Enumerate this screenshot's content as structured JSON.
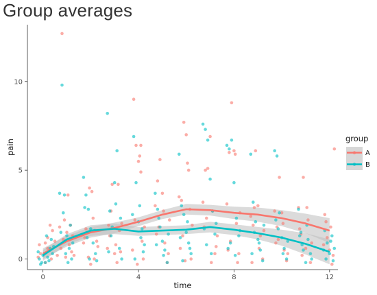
{
  "chart_data": {
    "type": "scatter",
    "title": "Group averages",
    "xlabel": "time",
    "ylabel": "pain",
    "xlim": [
      -0.65,
      12.35
    ],
    "ylim": [
      -0.6,
      13.2
    ],
    "x_ticks": [
      0,
      4,
      8,
      12
    ],
    "x_tick_labels": [
      "0",
      "4",
      "8",
      "12"
    ],
    "y_ticks": [
      0,
      5,
      10
    ],
    "y_tick_labels": [
      "0",
      "5",
      "10"
    ],
    "grid": false,
    "legend": {
      "title": "group",
      "position": "right",
      "entries": [
        "A",
        "B"
      ]
    },
    "colors": {
      "A": "#F8766D",
      "B": "#00BFC4",
      "ribbon": "#bdbdbd"
    },
    "series": [
      {
        "name": "A",
        "smooth": {
          "x": [
            0,
            1,
            2,
            3,
            4,
            5,
            6,
            7,
            8,
            9,
            10,
            11,
            12
          ],
          "y": [
            0.3,
            1.0,
            1.5,
            1.75,
            2.1,
            2.5,
            2.8,
            2.75,
            2.6,
            2.5,
            2.3,
            2.0,
            1.6
          ],
          "lower": [
            0.0,
            0.7,
            1.2,
            1.45,
            1.85,
            2.25,
            2.5,
            2.45,
            2.25,
            2.1,
            1.85,
            1.45,
            0.9
          ],
          "upper": [
            0.6,
            1.3,
            1.8,
            2.05,
            2.35,
            2.75,
            3.1,
            3.05,
            2.95,
            2.9,
            2.75,
            2.55,
            2.3
          ]
        },
        "points": [
          [
            -0.2,
            0.1
          ],
          [
            -0.1,
            0.3
          ],
          [
            0.1,
            0.9
          ],
          [
            0.2,
            1.2
          ],
          [
            0.3,
            1.9
          ],
          [
            0.4,
            1.6
          ],
          [
            0.1,
            -0.2
          ],
          [
            0.3,
            0.5
          ],
          [
            0.5,
            1.0
          ],
          [
            0.6,
            0.2
          ],
          [
            0.2,
            0.6
          ],
          [
            -0.15,
            0.8
          ],
          [
            0.35,
            0.0
          ],
          [
            0.8,
            12.7
          ],
          [
            0.7,
            1.8
          ],
          [
            0.9,
            2.2
          ],
          [
            1.0,
            1.5
          ],
          [
            1.1,
            0.8
          ],
          [
            1.2,
            0.4
          ],
          [
            0.85,
            1.1
          ],
          [
            1.15,
            1.9
          ],
          [
            0.95,
            0.1
          ],
          [
            1.05,
            3.6
          ],
          [
            1.25,
            1.3
          ],
          [
            0.75,
            0.6
          ],
          [
            1.3,
            0.2
          ],
          [
            1.7,
            0.9
          ],
          [
            1.8,
            1.7
          ],
          [
            1.9,
            0.1
          ],
          [
            2.0,
            -0.3
          ],
          [
            2.1,
            2.3
          ],
          [
            2.2,
            1.6
          ],
          [
            2.3,
            0.7
          ],
          [
            1.95,
            4.0
          ],
          [
            2.05,
            3.8
          ],
          [
            2.15,
            0.0
          ],
          [
            1.75,
            1.2
          ],
          [
            2.25,
            1.0
          ],
          [
            2.7,
            0.6
          ],
          [
            2.8,
            1.3
          ],
          [
            2.9,
            4.2
          ],
          [
            3.0,
            0.3
          ],
          [
            3.1,
            -0.2
          ],
          [
            3.2,
            1.6
          ],
          [
            3.3,
            2.0
          ],
          [
            3.05,
            0.8
          ],
          [
            2.85,
            2.7
          ],
          [
            3.15,
            4.2
          ],
          [
            3.25,
            0.4
          ],
          [
            2.75,
            1.9
          ],
          [
            3.8,
            9.0
          ],
          [
            3.9,
            6.4
          ],
          [
            4.0,
            5.5
          ],
          [
            4.05,
            5.8
          ],
          [
            4.1,
            6.4
          ],
          [
            3.85,
            2.2
          ],
          [
            4.15,
            1.0
          ],
          [
            4.2,
            0.0
          ],
          [
            3.95,
            -0.3
          ],
          [
            4.25,
            1.8
          ],
          [
            3.75,
            0.5
          ],
          [
            4.1,
            4.9
          ],
          [
            4.7,
            3.0
          ],
          [
            4.8,
            4.4
          ],
          [
            4.9,
            5.6
          ],
          [
            5.0,
            3.7
          ],
          [
            5.1,
            0.9
          ],
          [
            5.2,
            -0.2
          ],
          [
            5.3,
            2.2
          ],
          [
            4.85,
            1.8
          ],
          [
            5.05,
            2.7
          ],
          [
            5.25,
            0.3
          ],
          [
            4.75,
            1.4
          ],
          [
            5.7,
            3.5
          ],
          [
            5.8,
            3.3
          ],
          [
            5.9,
            7.7
          ],
          [
            6.0,
            7.0
          ],
          [
            6.05,
            5.4
          ],
          [
            6.1,
            5.0
          ],
          [
            6.2,
            0.0
          ],
          [
            5.85,
            1.3
          ],
          [
            6.15,
            2.8
          ],
          [
            5.75,
            0.6
          ],
          [
            6.25,
            1.9
          ],
          [
            5.95,
            -0.1
          ],
          [
            6.7,
            3.2
          ],
          [
            6.8,
            5.0
          ],
          [
            6.9,
            5.1
          ],
          [
            7.0,
            6.9
          ],
          [
            7.1,
            2.7
          ],
          [
            7.2,
            0.3
          ],
          [
            7.3,
            1.3
          ],
          [
            6.85,
            2.3
          ],
          [
            7.05,
            -0.2
          ],
          [
            7.25,
            0.7
          ],
          [
            6.75,
            1.8
          ],
          [
            7.7,
            3.1
          ],
          [
            7.8,
            6.0
          ],
          [
            7.9,
            8.8
          ],
          [
            8.0,
            6.1
          ],
          [
            8.05,
            5.9
          ],
          [
            8.1,
            2.0
          ],
          [
            8.2,
            0.3
          ],
          [
            7.85,
            1.0
          ],
          [
            8.15,
            -0.2
          ],
          [
            8.25,
            2.6
          ],
          [
            7.75,
            0.5
          ],
          [
            8.7,
            2.4
          ],
          [
            8.8,
            1.9
          ],
          [
            8.9,
            6.1
          ],
          [
            9.0,
            3.0
          ],
          [
            9.1,
            1.3
          ],
          [
            9.2,
            0.0
          ],
          [
            8.85,
            2.9
          ],
          [
            9.05,
            0.6
          ],
          [
            9.25,
            1.6
          ],
          [
            8.75,
            -0.2
          ],
          [
            9.7,
            2.7
          ],
          [
            9.8,
            1.8
          ],
          [
            9.9,
            4.6
          ],
          [
            10.0,
            2.6
          ],
          [
            10.1,
            0.5
          ],
          [
            10.2,
            -0.1
          ],
          [
            9.85,
            1.1
          ],
          [
            10.05,
            2.0
          ],
          [
            10.25,
            0.3
          ],
          [
            9.75,
            0.9
          ],
          [
            10.7,
            2.9
          ],
          [
            10.8,
            1.4
          ],
          [
            10.9,
            4.6
          ],
          [
            11.0,
            0.6
          ],
          [
            11.1,
            2.2
          ],
          [
            11.2,
            -0.2
          ],
          [
            10.85,
            0.2
          ],
          [
            11.05,
            2.9
          ],
          [
            11.25,
            0.9
          ],
          [
            10.75,
            1.7
          ],
          [
            11.8,
            2.5
          ],
          [
            11.9,
            1.2
          ],
          [
            12.0,
            0.5
          ],
          [
            12.1,
            -0.3
          ],
          [
            12.2,
            6.2
          ],
          [
            11.85,
            2.1
          ],
          [
            12.05,
            1.8
          ],
          [
            12.15,
            0.2
          ],
          [
            11.75,
            0.8
          ]
        ]
      },
      {
        "name": "B",
        "smooth": {
          "x": [
            0,
            1,
            2,
            3,
            4,
            5,
            6,
            7,
            8,
            9,
            10,
            11,
            12
          ],
          "y": [
            0.2,
            1.1,
            1.6,
            1.7,
            1.55,
            1.6,
            1.65,
            1.8,
            1.65,
            1.45,
            1.2,
            0.85,
            0.4
          ],
          "lower": [
            -0.1,
            0.8,
            1.3,
            1.4,
            1.3,
            1.35,
            1.4,
            1.5,
            1.35,
            1.1,
            0.75,
            0.25,
            -0.3
          ],
          "upper": [
            0.5,
            1.4,
            1.9,
            2.0,
            1.8,
            1.85,
            1.9,
            2.1,
            1.95,
            1.8,
            1.65,
            1.45,
            1.1
          ]
        },
        "points": [
          [
            -0.2,
            0.4
          ],
          [
            -0.1,
            -0.3
          ],
          [
            0.0,
            0.2
          ],
          [
            0.1,
            -0.2
          ],
          [
            0.2,
            0.1
          ],
          [
            0.3,
            0.6
          ],
          [
            0.4,
            0.3
          ],
          [
            -0.15,
            0.0
          ],
          [
            0.05,
            0.3
          ],
          [
            0.25,
            -0.1
          ],
          [
            0.35,
            1.1
          ],
          [
            0.45,
            0.7
          ],
          [
            0.15,
            1.3
          ],
          [
            -0.05,
            -0.2
          ],
          [
            0.8,
            9.8
          ],
          [
            0.7,
            3.7
          ],
          [
            0.9,
            3.6
          ],
          [
            1.0,
            1.3
          ],
          [
            1.1,
            0.6
          ],
          [
            1.2,
            0.0
          ],
          [
            0.85,
            2.6
          ],
          [
            1.15,
            1.9
          ],
          [
            0.95,
            0.3
          ],
          [
            1.05,
            -0.2
          ],
          [
            1.25,
            0.9
          ],
          [
            0.75,
            1.5
          ],
          [
            1.7,
            4.6
          ],
          [
            1.8,
            3.6
          ],
          [
            1.9,
            2.8
          ],
          [
            2.0,
            1.7
          ],
          [
            2.1,
            0.9
          ],
          [
            2.2,
            0.3
          ],
          [
            1.75,
            2.9
          ],
          [
            1.95,
            0.0
          ],
          [
            2.15,
            1.6
          ],
          [
            2.25,
            -0.1
          ],
          [
            1.85,
            1.2
          ],
          [
            2.7,
            8.2
          ],
          [
            2.8,
            2.7
          ],
          [
            2.9,
            1.8
          ],
          [
            3.0,
            4.3
          ],
          [
            3.1,
            6.1
          ],
          [
            3.2,
            0.6
          ],
          [
            3.3,
            0.0
          ],
          [
            2.85,
            1.3
          ],
          [
            3.05,
            3.1
          ],
          [
            3.25,
            2.3
          ],
          [
            2.75,
            0.4
          ],
          [
            3.8,
            6.9
          ],
          [
            3.9,
            4.3
          ],
          [
            4.0,
            2.1
          ],
          [
            4.1,
            1.2
          ],
          [
            4.2,
            0.4
          ],
          [
            3.85,
            0.0
          ],
          [
            4.05,
            3.0
          ],
          [
            4.15,
            1.7
          ],
          [
            3.75,
            2.5
          ],
          [
            4.25,
            0.8
          ],
          [
            4.7,
            3.7
          ],
          [
            4.8,
            2.8
          ],
          [
            4.9,
            1.8
          ],
          [
            5.0,
            1.0
          ],
          [
            5.1,
            0.5
          ],
          [
            5.2,
            -0.2
          ],
          [
            4.85,
            2.3
          ],
          [
            5.05,
            0.2
          ],
          [
            5.25,
            1.4
          ],
          [
            4.75,
            0.8
          ],
          [
            5.7,
            5.9
          ],
          [
            5.8,
            3.0
          ],
          [
            5.9,
            2.5
          ],
          [
            6.0,
            1.5
          ],
          [
            6.1,
            0.9
          ],
          [
            6.2,
            0.3
          ],
          [
            5.85,
            -0.1
          ],
          [
            6.05,
            2.1
          ],
          [
            6.15,
            0.6
          ],
          [
            5.75,
            1.2
          ],
          [
            6.7,
            7.6
          ],
          [
            6.8,
            7.3
          ],
          [
            6.9,
            6.7
          ],
          [
            7.0,
            4.5
          ],
          [
            7.1,
            2.7
          ],
          [
            7.2,
            1.4
          ],
          [
            6.85,
            0.8
          ],
          [
            7.05,
            0.3
          ],
          [
            7.25,
            2.0
          ],
          [
            6.75,
            1.7
          ],
          [
            7.7,
            6.4
          ],
          [
            7.8,
            6.2
          ],
          [
            7.9,
            6.7
          ],
          [
            8.0,
            4.3
          ],
          [
            8.1,
            2.3
          ],
          [
            8.2,
            1.3
          ],
          [
            7.85,
            0.9
          ],
          [
            8.05,
            0.2
          ],
          [
            8.25,
            1.6
          ],
          [
            7.75,
            0.6
          ],
          [
            8.7,
            5.9
          ],
          [
            8.8,
            3.2
          ],
          [
            8.9,
            2.1
          ],
          [
            9.0,
            1.1
          ],
          [
            9.1,
            0.5
          ],
          [
            9.2,
            -0.1
          ],
          [
            8.85,
            1.5
          ],
          [
            9.05,
            0.9
          ],
          [
            9.25,
            1.9
          ],
          [
            8.75,
            0.3
          ],
          [
            9.7,
            6.1
          ],
          [
            9.8,
            5.8
          ],
          [
            9.9,
            2.6
          ],
          [
            10.0,
            1.2
          ],
          [
            10.1,
            0.6
          ],
          [
            10.2,
            0.0
          ],
          [
            9.85,
            1.7
          ],
          [
            10.05,
            0.3
          ],
          [
            10.25,
            1.0
          ],
          [
            9.75,
            2.2
          ],
          [
            10.7,
            2.8
          ],
          [
            10.8,
            1.5
          ],
          [
            10.9,
            0.5
          ],
          [
            11.0,
            -0.2
          ],
          [
            11.1,
            1.1
          ],
          [
            11.2,
            0.3
          ],
          [
            10.85,
            0.8
          ],
          [
            11.05,
            1.9
          ],
          [
            11.25,
            0.0
          ],
          [
            10.75,
            1.3
          ],
          [
            11.8,
            1.6
          ],
          [
            11.9,
            0.9
          ],
          [
            12.0,
            0.3
          ],
          [
            12.1,
            1.3
          ],
          [
            12.2,
            0.6
          ],
          [
            11.85,
            0.0
          ],
          [
            12.05,
            1.0
          ],
          [
            12.15,
            -0.1
          ],
          [
            11.75,
            0.5
          ]
        ]
      }
    ]
  }
}
